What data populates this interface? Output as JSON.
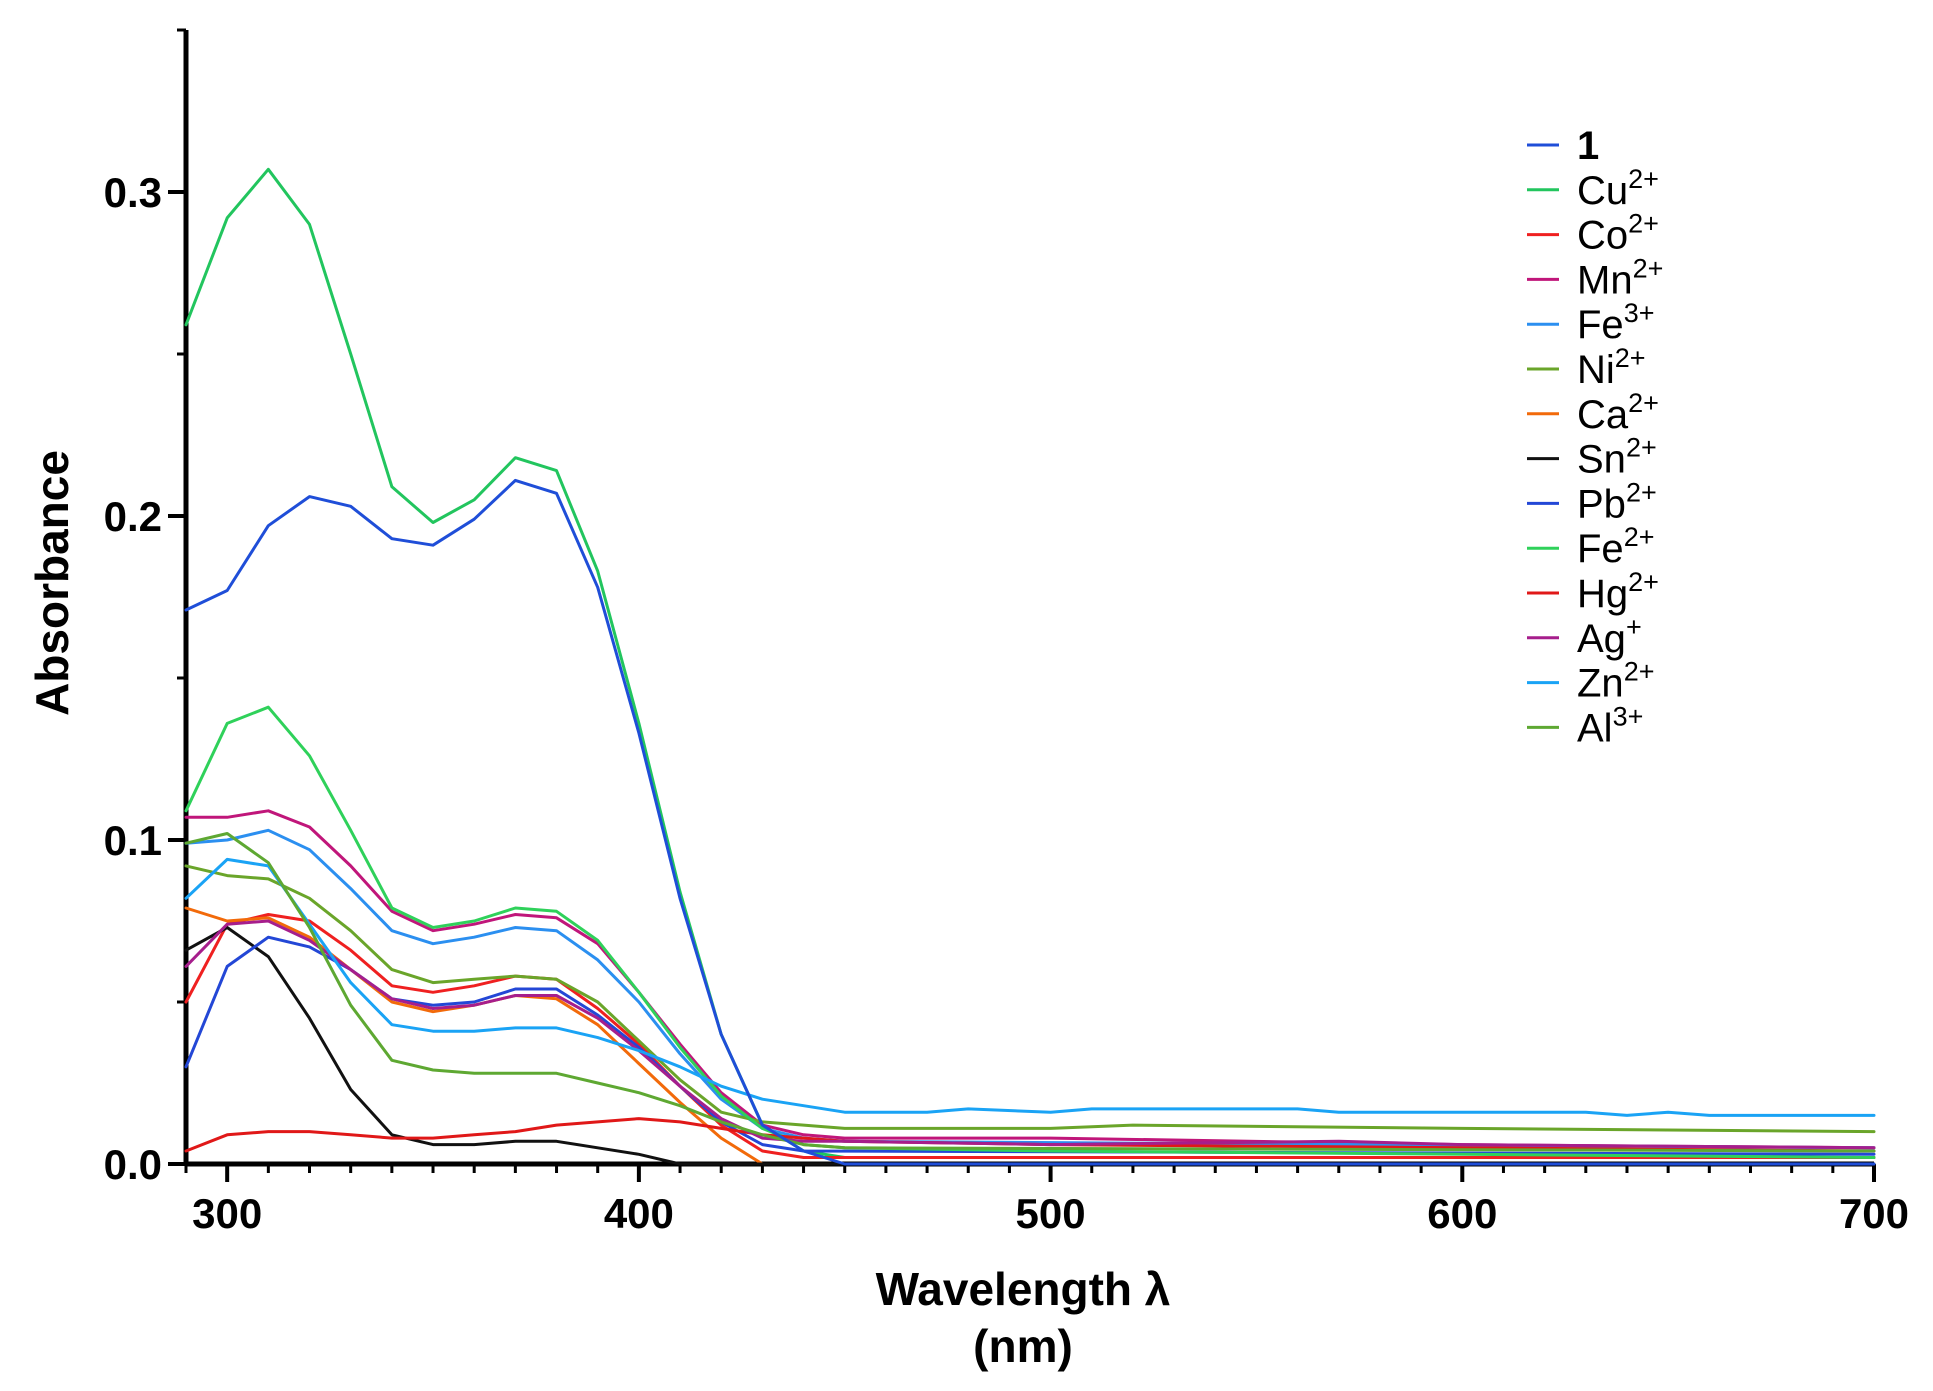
{
  "chart_data": {
    "type": "line",
    "title": "",
    "xlabel": "Wavelength λ",
    "xlabel_unit": "(nm)",
    "ylabel": "Absorbance",
    "xlim": [
      290,
      700
    ],
    "ylim": [
      0,
      0.35
    ],
    "x_ticks": [
      300,
      400,
      500,
      600,
      700
    ],
    "x_tick_labels": [
      "300",
      "400",
      "500",
      "600",
      "700"
    ],
    "y_ticks": [
      0.0,
      0.1,
      0.2,
      0.3
    ],
    "y_tick_labels": [
      "0.0",
      "0.1",
      "0.2",
      "0.3"
    ],
    "x_minor_step": 10,
    "y_minor_step": 0.05,
    "grid": false,
    "legend_position": "top-right",
    "series": [
      {
        "name": "1",
        "base": "1",
        "sup": "",
        "bold": true,
        "color": "#1f4ed8",
        "points": [
          [
            290,
            0.171
          ],
          [
            300,
            0.177
          ],
          [
            310,
            0.197
          ],
          [
            320,
            0.206
          ],
          [
            330,
            0.203
          ],
          [
            340,
            0.193
          ],
          [
            350,
            0.191
          ],
          [
            360,
            0.199
          ],
          [
            370,
            0.211
          ],
          [
            380,
            0.207
          ],
          [
            390,
            0.178
          ],
          [
            400,
            0.133
          ],
          [
            410,
            0.082
          ],
          [
            420,
            0.04
          ],
          [
            430,
            0.012
          ],
          [
            440,
            0.004
          ],
          [
            450,
            0.0
          ],
          [
            700,
            0.0
          ]
        ]
      },
      {
        "name": "Cu2+",
        "base": "Cu",
        "sup": "2+",
        "bold": false,
        "color": "#22c55e",
        "points": [
          [
            290,
            0.259
          ],
          [
            300,
            0.292
          ],
          [
            310,
            0.307
          ],
          [
            320,
            0.29
          ],
          [
            330,
            0.25
          ],
          [
            340,
            0.209
          ],
          [
            350,
            0.198
          ],
          [
            360,
            0.205
          ],
          [
            370,
            0.218
          ],
          [
            380,
            0.214
          ],
          [
            390,
            0.183
          ],
          [
            400,
            0.136
          ],
          [
            410,
            0.084
          ],
          [
            420,
            0.04
          ],
          [
            430,
            0.012
          ],
          [
            440,
            0.004
          ],
          [
            450,
            0.002
          ],
          [
            700,
            0.002
          ]
        ]
      },
      {
        "name": "Co2+",
        "base": "Co",
        "sup": "2+",
        "bold": false,
        "color": "#ef2020",
        "points": [
          [
            290,
            0.05
          ],
          [
            300,
            0.074
          ],
          [
            310,
            0.077
          ],
          [
            320,
            0.075
          ],
          [
            330,
            0.066
          ],
          [
            340,
            0.055
          ],
          [
            350,
            0.053
          ],
          [
            360,
            0.055
          ],
          [
            370,
            0.058
          ],
          [
            380,
            0.057
          ],
          [
            390,
            0.048
          ],
          [
            400,
            0.037
          ],
          [
            410,
            0.024
          ],
          [
            420,
            0.012
          ],
          [
            430,
            0.004
          ],
          [
            440,
            0.002
          ],
          [
            700,
            0.002
          ]
        ]
      },
      {
        "name": "Mn2+",
        "base": "Mn",
        "sup": "2+",
        "bold": false,
        "color": "#c0167a",
        "points": [
          [
            290,
            0.107
          ],
          [
            300,
            0.107
          ],
          [
            310,
            0.109
          ],
          [
            320,
            0.104
          ],
          [
            330,
            0.092
          ],
          [
            340,
            0.078
          ],
          [
            350,
            0.072
          ],
          [
            360,
            0.074
          ],
          [
            370,
            0.077
          ],
          [
            380,
            0.076
          ],
          [
            390,
            0.068
          ],
          [
            400,
            0.053
          ],
          [
            410,
            0.037
          ],
          [
            420,
            0.022
          ],
          [
            430,
            0.012
          ],
          [
            440,
            0.009
          ],
          [
            450,
            0.008
          ],
          [
            500,
            0.008
          ],
          [
            600,
            0.006
          ],
          [
            700,
            0.005
          ]
        ]
      },
      {
        "name": "Fe3+",
        "base": "Fe",
        "sup": "3+",
        "bold": false,
        "color": "#2b8ff0",
        "points": [
          [
            290,
            0.099
          ],
          [
            300,
            0.1
          ],
          [
            310,
            0.103
          ],
          [
            320,
            0.097
          ],
          [
            330,
            0.085
          ],
          [
            340,
            0.072
          ],
          [
            350,
            0.068
          ],
          [
            360,
            0.07
          ],
          [
            370,
            0.073
          ],
          [
            380,
            0.072
          ],
          [
            390,
            0.063
          ],
          [
            400,
            0.05
          ],
          [
            410,
            0.034
          ],
          [
            420,
            0.02
          ],
          [
            430,
            0.011
          ],
          [
            440,
            0.008
          ],
          [
            450,
            0.007
          ],
          [
            700,
            0.005
          ]
        ]
      },
      {
        "name": "Ni2+",
        "base": "Ni",
        "sup": "2+",
        "bold": false,
        "color": "#6aa52a",
        "points": [
          [
            290,
            0.092
          ],
          [
            300,
            0.089
          ],
          [
            310,
            0.088
          ],
          [
            320,
            0.082
          ],
          [
            330,
            0.072
          ],
          [
            340,
            0.06
          ],
          [
            350,
            0.056
          ],
          [
            360,
            0.057
          ],
          [
            370,
            0.058
          ],
          [
            380,
            0.057
          ],
          [
            390,
            0.05
          ],
          [
            400,
            0.038
          ],
          [
            410,
            0.026
          ],
          [
            420,
            0.016
          ],
          [
            430,
            0.013
          ],
          [
            440,
            0.012
          ],
          [
            450,
            0.011
          ],
          [
            500,
            0.011
          ],
          [
            520,
            0.012
          ],
          [
            600,
            0.011
          ],
          [
            700,
            0.01
          ]
        ]
      },
      {
        "name": "Ca2+",
        "base": "Ca",
        "sup": "2+",
        "bold": false,
        "color": "#f26a0a",
        "points": [
          [
            290,
            0.079
          ],
          [
            300,
            0.075
          ],
          [
            310,
            0.076
          ],
          [
            320,
            0.07
          ],
          [
            330,
            0.06
          ],
          [
            340,
            0.05
          ],
          [
            350,
            0.047
          ],
          [
            360,
            0.049
          ],
          [
            370,
            0.052
          ],
          [
            380,
            0.051
          ],
          [
            390,
            0.043
          ],
          [
            400,
            0.031
          ],
          [
            410,
            0.019
          ],
          [
            420,
            0.008
          ],
          [
            430,
            0.0
          ],
          [
            700,
            0.0
          ]
        ]
      },
      {
        "name": "Sn2+",
        "base": "Sn",
        "sup": "2+",
        "bold": false,
        "color": "#111111",
        "points": [
          [
            290,
            0.066
          ],
          [
            300,
            0.073
          ],
          [
            310,
            0.064
          ],
          [
            320,
            0.045
          ],
          [
            330,
            0.023
          ],
          [
            340,
            0.009
          ],
          [
            350,
            0.006
          ],
          [
            360,
            0.006
          ],
          [
            370,
            0.007
          ],
          [
            380,
            0.007
          ],
          [
            390,
            0.005
          ],
          [
            400,
            0.003
          ],
          [
            410,
            0.0
          ],
          [
            700,
            0.0
          ]
        ]
      },
      {
        "name": "Pb2+",
        "base": "Pb",
        "sup": "2+",
        "bold": false,
        "color": "#2347d6",
        "points": [
          [
            290,
            0.03
          ],
          [
            300,
            0.061
          ],
          [
            310,
            0.07
          ],
          [
            320,
            0.067
          ],
          [
            330,
            0.06
          ],
          [
            340,
            0.051
          ],
          [
            350,
            0.049
          ],
          [
            360,
            0.05
          ],
          [
            370,
            0.054
          ],
          [
            380,
            0.054
          ],
          [
            390,
            0.046
          ],
          [
            400,
            0.036
          ],
          [
            410,
            0.024
          ],
          [
            420,
            0.013
          ],
          [
            430,
            0.006
          ],
          [
            440,
            0.004
          ],
          [
            700,
            0.003
          ]
        ]
      },
      {
        "name": "Fe2+",
        "base": "Fe",
        "sup": "2+",
        "bold": false,
        "color": "#2fd15a",
        "points": [
          [
            290,
            0.109
          ],
          [
            300,
            0.136
          ],
          [
            310,
            0.141
          ],
          [
            320,
            0.126
          ],
          [
            330,
            0.103
          ],
          [
            340,
            0.079
          ],
          [
            350,
            0.073
          ],
          [
            360,
            0.075
          ],
          [
            370,
            0.079
          ],
          [
            380,
            0.078
          ],
          [
            390,
            0.069
          ],
          [
            400,
            0.053
          ],
          [
            410,
            0.036
          ],
          [
            420,
            0.021
          ],
          [
            430,
            0.011
          ],
          [
            440,
            0.006
          ],
          [
            450,
            0.005
          ],
          [
            500,
            0.004
          ],
          [
            600,
            0.003
          ],
          [
            700,
            0.002
          ]
        ]
      },
      {
        "name": "Hg2+",
        "base": "Hg",
        "sup": "2+",
        "bold": false,
        "color": "#e01818",
        "points": [
          [
            290,
            0.004
          ],
          [
            300,
            0.009
          ],
          [
            310,
            0.01
          ],
          [
            320,
            0.01
          ],
          [
            330,
            0.009
          ],
          [
            340,
            0.008
          ],
          [
            350,
            0.008
          ],
          [
            360,
            0.009
          ],
          [
            370,
            0.01
          ],
          [
            380,
            0.012
          ],
          [
            390,
            0.013
          ],
          [
            400,
            0.014
          ],
          [
            410,
            0.013
          ],
          [
            420,
            0.011
          ],
          [
            430,
            0.009
          ],
          [
            440,
            0.008
          ],
          [
            450,
            0.007
          ],
          [
            500,
            0.006
          ],
          [
            600,
            0.005
          ],
          [
            700,
            0.004
          ]
        ]
      },
      {
        "name": "Ag+",
        "base": "Ag",
        "sup": "+",
        "bold": false,
        "color": "#a61e8c",
        "points": [
          [
            290,
            0.061
          ],
          [
            300,
            0.074
          ],
          [
            310,
            0.075
          ],
          [
            320,
            0.069
          ],
          [
            330,
            0.06
          ],
          [
            340,
            0.051
          ],
          [
            350,
            0.048
          ],
          [
            360,
            0.049
          ],
          [
            370,
            0.052
          ],
          [
            380,
            0.052
          ],
          [
            390,
            0.045
          ],
          [
            400,
            0.035
          ],
          [
            410,
            0.024
          ],
          [
            420,
            0.014
          ],
          [
            430,
            0.008
          ],
          [
            440,
            0.007
          ],
          [
            450,
            0.007
          ],
          [
            500,
            0.006
          ],
          [
            570,
            0.007
          ],
          [
            600,
            0.006
          ],
          [
            700,
            0.005
          ]
        ]
      },
      {
        "name": "Zn2+",
        "base": "Zn",
        "sup": "2+",
        "bold": false,
        "color": "#1aa3f5",
        "points": [
          [
            290,
            0.082
          ],
          [
            300,
            0.094
          ],
          [
            310,
            0.092
          ],
          [
            320,
            0.074
          ],
          [
            330,
            0.056
          ],
          [
            340,
            0.043
          ],
          [
            350,
            0.041
          ],
          [
            360,
            0.041
          ],
          [
            370,
            0.042
          ],
          [
            380,
            0.042
          ],
          [
            390,
            0.039
          ],
          [
            400,
            0.035
          ],
          [
            410,
            0.03
          ],
          [
            420,
            0.024
          ],
          [
            430,
            0.02
          ],
          [
            440,
            0.018
          ],
          [
            450,
            0.016
          ],
          [
            470,
            0.016
          ],
          [
            480,
            0.017
          ],
          [
            500,
            0.016
          ],
          [
            510,
            0.017
          ],
          [
            560,
            0.017
          ],
          [
            570,
            0.016
          ],
          [
            630,
            0.016
          ],
          [
            640,
            0.015
          ],
          [
            650,
            0.016
          ],
          [
            660,
            0.015
          ],
          [
            700,
            0.015
          ]
        ]
      },
      {
        "name": "Al3+",
        "base": "Al",
        "sup": "3+",
        "bold": false,
        "color": "#5ea832",
        "points": [
          [
            290,
            0.099
          ],
          [
            300,
            0.102
          ],
          [
            310,
            0.093
          ],
          [
            320,
            0.073
          ],
          [
            330,
            0.049
          ],
          [
            340,
            0.032
          ],
          [
            350,
            0.029
          ],
          [
            360,
            0.028
          ],
          [
            370,
            0.028
          ],
          [
            380,
            0.028
          ],
          [
            390,
            0.025
          ],
          [
            400,
            0.022
          ],
          [
            410,
            0.018
          ],
          [
            420,
            0.013
          ],
          [
            430,
            0.009
          ],
          [
            440,
            0.006
          ],
          [
            450,
            0.005
          ],
          [
            700,
            0.004
          ]
        ]
      }
    ]
  }
}
